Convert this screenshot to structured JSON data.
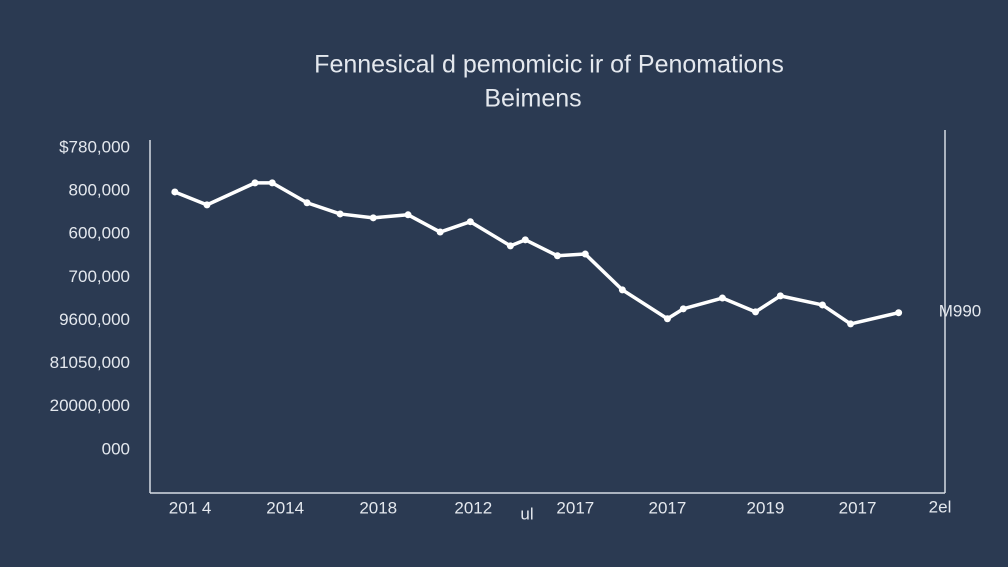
{
  "chart_data": {
    "type": "line",
    "title": [
      "Fennesical d pemomicic ir of Penomations",
      "Beimens"
    ],
    "color": "#ffffff",
    "x": [
      0.75,
      1.72,
      3.17,
      3.69,
      4.74,
      5.74,
      6.74,
      7.79,
      8.76,
      9.67,
      10.88,
      11.33,
      12.3,
      13.14,
      14.26,
      15.62,
      16.1,
      17.28,
      18.28,
      19.03,
      20.3,
      21.15,
      22.6
    ],
    "values": [
      5.98,
      5.68,
      6.19,
      6.19,
      5.73,
      5.47,
      5.38,
      5.45,
      5.05,
      5.29,
      4.73,
      4.87,
      4.5,
      4.54,
      3.71,
      3.04,
      3.27,
      3.52,
      3.2,
      3.57,
      3.36,
      2.92,
      3.18
    ],
    "xlim": [
      0,
      24
    ],
    "xticks": [
      {
        "value": 1.21,
        "label": "201 4"
      },
      {
        "value": 4.08,
        "label": "2014"
      },
      {
        "value": 6.89,
        "label": "2018"
      },
      {
        "value": 9.76,
        "label": "2012"
      },
      {
        "value": 12.84,
        "label": "2017"
      },
      {
        "value": 15.62,
        "label": "2017"
      },
      {
        "value": 18.58,
        "label": "2019"
      },
      {
        "value": 21.36,
        "label": "2017"
      }
    ],
    "ylim": [
      -1,
      7.4
    ],
    "yticks": [
      {
        "value": 0,
        "label": "000"
      },
      {
        "value": 1,
        "label": "20000,000"
      },
      {
        "value": 2,
        "label": "81050,000"
      },
      {
        "value": 3,
        "label": "9600,000"
      },
      {
        "value": 4,
        "label": "700,000"
      },
      {
        "value": 5,
        "label": "600,000"
      },
      {
        "value": 6,
        "label": "800,000"
      },
      {
        "value": 7,
        "label": "$780,000"
      }
    ],
    "annotations": [
      "M990",
      "ul",
      "2el"
    ]
  }
}
